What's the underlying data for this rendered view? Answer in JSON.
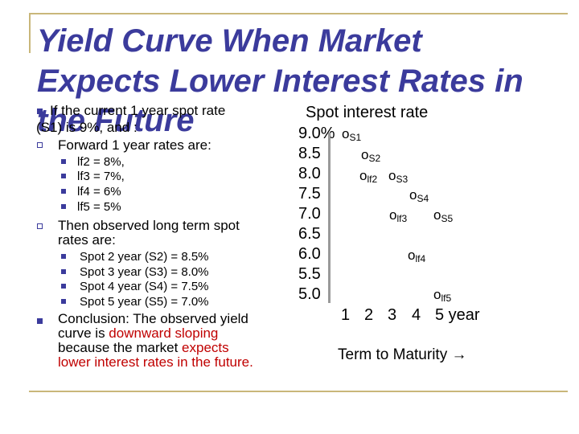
{
  "slide": {
    "title_line1": "Yield Curve When Market",
    "title_line2": "Expects Lower Interest Rates in",
    "title_line3": "the Future",
    "bullets": {
      "current_a": "If the current 1 year spot rate",
      "current_b": "(S1) is 9%, and :",
      "forward_heading": "Forward 1 year rates are:",
      "forward_items": [
        "lf2 = 8%,",
        "lf3 = 7%,",
        "lf4 = 6%",
        "lf5 = 5%"
      ],
      "observed_a": "Then observed long term spot",
      "observed_b": "rates are:",
      "spot_items": [
        "Spot 2 year (S2) = 8.5%",
        "Spot 3 year (S3) = 8.0%",
        "Spot 4 year (S4) = 7.5%",
        "Spot 5 year (S5) = 7.0%"
      ],
      "conclusion_1": "Conclusion: The observed yield",
      "conclusion_2a": "curve is ",
      "conclusion_2b": "downward sloping",
      "conclusion_3a": "because the market ",
      "conclusion_3b": "expects",
      "conclusion_4": "lower interest rates in the future."
    },
    "colors": {
      "title": "#3b3b9c",
      "emphasis": "#c00000",
      "rule": "#c9b77a"
    }
  },
  "chart_data": {
    "type": "scatter",
    "ylabel": "Spot interest rate",
    "xlabel": "Term to Maturity →",
    "y_ticks": [
      "9.0%",
      "8.5",
      "8.0",
      "7.5",
      "7.0",
      "6.5",
      "6.0",
      "5.5",
      "5.0"
    ],
    "x_ticks": [
      "1",
      "2",
      "3",
      "4",
      "5 year"
    ],
    "point_marker": "o",
    "series": [
      {
        "name": "Spot",
        "points": [
          {
            "label": "S1",
            "x": 1,
            "y": 9.0
          },
          {
            "label": "S2",
            "x": 2,
            "y": 8.5
          },
          {
            "label": "S3",
            "x": 3,
            "y": 8.0
          },
          {
            "label": "S4",
            "x": 4,
            "y": 7.5
          },
          {
            "label": "S5",
            "x": 5,
            "y": 7.0
          }
        ]
      },
      {
        "name": "Forward",
        "points": [
          {
            "label": "lf2",
            "x": 2,
            "y": 8.0
          },
          {
            "label": "lf3",
            "x": 3,
            "y": 7.0
          },
          {
            "label": "lf4",
            "x": 4,
            "y": 6.0
          },
          {
            "label": "lf5",
            "x": 5,
            "y": 5.0
          }
        ]
      }
    ]
  }
}
